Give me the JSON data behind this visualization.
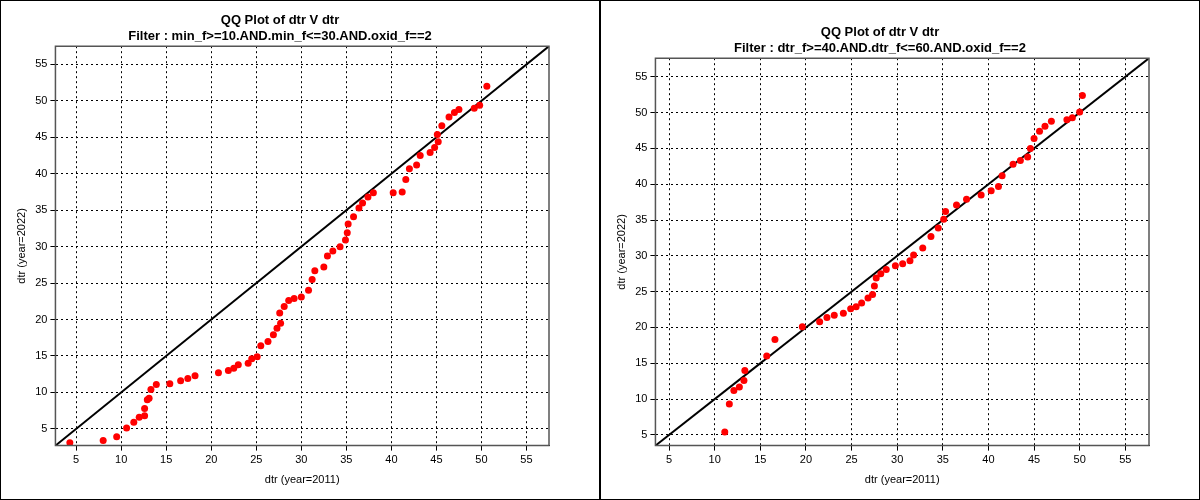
{
  "chart_data": [
    {
      "type": "scatter",
      "title": "QQ Plot of dtr V dtr",
      "subtitle": "Filter : min_f>=10.AND.min_f<=30.AND.oxid_f==2",
      "xlabel": "dtr (year=2011)",
      "ylabel": "dtr (year=2022)",
      "xlim": [
        2.7,
        57.5
      ],
      "ylim": [
        2.7,
        57.5
      ],
      "xticks": [
        5,
        10,
        15,
        20,
        25,
        30,
        35,
        40,
        45,
        50,
        55
      ],
      "yticks": [
        5,
        10,
        15,
        20,
        25,
        30,
        35,
        40,
        45,
        50,
        55
      ],
      "grid": true,
      "legend": false,
      "marker": "circle",
      "series": [
        {
          "color": "#ff0000",
          "x": [
            4.3,
            8.0,
            9.5,
            10.6,
            11.4,
            12.0,
            12.6,
            12.6,
            12.9,
            13.1,
            13.3,
            13.9,
            15.4,
            16.6,
            17.4,
            18.2,
            20.8,
            21.9,
            22.5,
            23.0,
            24.1,
            24.5,
            25.1,
            25.5,
            26.3,
            26.9,
            27.3,
            27.7,
            27.6,
            28.1,
            28.6,
            29.2,
            30.0,
            30.8,
            31.2,
            31.5,
            32.5,
            32.9,
            33.5,
            34.3,
            34.9,
            35.1,
            35.2,
            35.8,
            36.4,
            36.8,
            37.4,
            38.0,
            40.2,
            41.2,
            41.6,
            42.0,
            42.8,
            43.2,
            44.3,
            44.8,
            45.2,
            45.1,
            45.6,
            46.4,
            47.0,
            47.5,
            49.2,
            49.8,
            50.6
          ],
          "values": [
            3.1,
            3.4,
            3.9,
            5.1,
            5.9,
            6.6,
            6.8,
            7.8,
            9.0,
            9.2,
            10.4,
            11.1,
            11.2,
            11.6,
            11.9,
            12.3,
            12.7,
            13.0,
            13.3,
            13.8,
            14.0,
            14.6,
            14.9,
            16.4,
            17.0,
            17.9,
            18.8,
            19.5,
            20.9,
            21.8,
            22.6,
            22.9,
            23.1,
            24.0,
            25.5,
            26.7,
            27.2,
            28.7,
            29.4,
            30.0,
            30.9,
            31.9,
            33.1,
            34.1,
            35.3,
            36.0,
            36.8,
            37.4,
            37.4,
            37.5,
            39.2,
            40.7,
            41.2,
            42.5,
            42.9,
            43.6,
            44.4,
            45.4,
            46.6,
            47.8,
            48.4,
            48.8,
            49.0,
            49.4,
            52.0
          ]
        },
        {
          "type": "line",
          "color": "#000000",
          "x": [
            2.7,
            57.5
          ],
          "values": [
            2.7,
            57.5
          ],
          "marker": "none"
        }
      ]
    },
    {
      "type": "scatter",
      "title": "QQ Plot of dtr V dtr",
      "subtitle": "Filter : dtr_f>=40.AND.dtr_f<=60.AND.oxid_f==2",
      "xlabel": "dtr (year=2011)",
      "ylabel": "dtr (year=2022)",
      "xlim": [
        3.5,
        57.6
      ],
      "ylim": [
        3.5,
        57.6
      ],
      "xticks": [
        5,
        10,
        15,
        20,
        25,
        30,
        35,
        40,
        45,
        50,
        55
      ],
      "yticks": [
        5,
        10,
        15,
        20,
        25,
        30,
        35,
        40,
        45,
        50,
        55
      ],
      "grid": true,
      "legend": false,
      "marker": "circle",
      "series": [
        {
          "color": "#ff0000",
          "x": [
            11.1,
            11.6,
            12.1,
            12.7,
            13.2,
            13.3,
            15.7,
            16.6,
            19.6,
            21.5,
            22.3,
            23.1,
            24.1,
            24.9,
            25.5,
            26.1,
            26.8,
            27.3,
            27.5,
            27.7,
            28.2,
            28.8,
            29.8,
            30.6,
            31.4,
            31.8,
            32.8,
            33.7,
            34.5,
            35.1,
            35.3,
            36.5,
            37.6,
            39.2,
            40.3,
            41.1,
            41.5,
            42.7,
            43.5,
            44.3,
            44.6,
            45.0,
            45.6,
            46.2,
            46.9,
            48.6,
            49.2,
            50.0,
            50.3
          ],
          "values": [
            5.4,
            9.3,
            11.2,
            11.7,
            12.6,
            14.0,
            16.0,
            18.3,
            20.1,
            20.8,
            21.4,
            21.7,
            22.0,
            22.6,
            22.9,
            23.4,
            24.1,
            24.6,
            25.8,
            26.9,
            27.5,
            28.1,
            28.6,
            28.9,
            29.3,
            30.1,
            31.1,
            32.7,
            33.9,
            35.1,
            36.2,
            37.1,
            37.9,
            38.5,
            39.1,
            39.7,
            41.2,
            42.8,
            43.3,
            43.8,
            45.0,
            46.4,
            47.4,
            48.1,
            48.8,
            49.0,
            49.3,
            50.1,
            52.4
          ]
        },
        {
          "type": "line",
          "color": "#000000",
          "x": [
            3.5,
            57.6
          ],
          "values": [
            3.5,
            57.6
          ],
          "marker": "none"
        }
      ]
    }
  ]
}
